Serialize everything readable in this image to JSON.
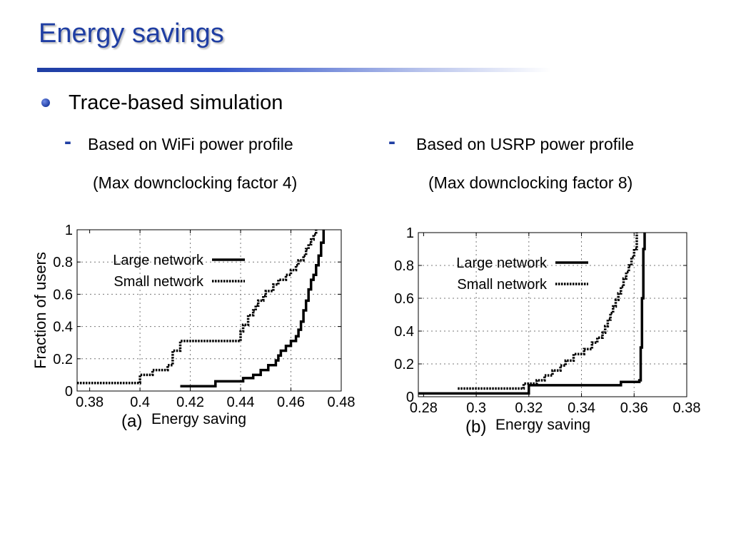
{
  "slide": {
    "title": "Energy savings",
    "bullet": "Trace-based simulation",
    "left_sub": "Based on WiFi power profile",
    "left_note": "(Max downclocking factor 4)",
    "right_sub": "Based on USRP power profile",
    "right_note": "(Max downclocking factor 8)",
    "colors": {
      "title": "#1f3ea3",
      "bullet": "#1f3ea3"
    }
  },
  "chart_data": [
    {
      "type": "line",
      "panel_label": "(a)",
      "xlabel": "Energy saving",
      "ylabel": "Fraction of users",
      "xlim": [
        0.375,
        0.48
      ],
      "ylim": [
        0,
        1
      ],
      "xticks": [
        "0.38",
        "0.4",
        "0.42",
        "0.44",
        "0.46",
        "0.48"
      ],
      "yticks": [
        "0",
        "0.2",
        "0.4",
        "0.6",
        "0.8",
        "1"
      ],
      "grid": true,
      "legend_position": "top-left",
      "step": true,
      "series": [
        {
          "name": "Large network",
          "style": "solid",
          "x": [
            0.416,
            0.43,
            0.441,
            0.445,
            0.448,
            0.451,
            0.454,
            0.455,
            0.456,
            0.458,
            0.46,
            0.462,
            0.463,
            0.464,
            0.465,
            0.466,
            0.467,
            0.468,
            0.469,
            0.47,
            0.471,
            0.472,
            0.473
          ],
          "y": [
            0.03,
            0.06,
            0.08,
            0.1,
            0.13,
            0.16,
            0.19,
            0.22,
            0.25,
            0.28,
            0.31,
            0.34,
            0.38,
            0.43,
            0.5,
            0.56,
            0.63,
            0.69,
            0.72,
            0.78,
            0.84,
            0.92,
            1.0
          ]
        },
        {
          "name": "Small network",
          "style": "dotted",
          "x": [
            0.375,
            0.4,
            0.405,
            0.411,
            0.413,
            0.416,
            0.44,
            0.441,
            0.443,
            0.445,
            0.446,
            0.447,
            0.449,
            0.45,
            0.453,
            0.455,
            0.458,
            0.46,
            0.462,
            0.463,
            0.465,
            0.466,
            0.467,
            0.468,
            0.469,
            0.47
          ],
          "y": [
            0.05,
            0.1,
            0.13,
            0.16,
            0.25,
            0.31,
            0.37,
            0.41,
            0.47,
            0.5,
            0.53,
            0.56,
            0.59,
            0.62,
            0.66,
            0.69,
            0.72,
            0.75,
            0.78,
            0.81,
            0.84,
            0.88,
            0.91,
            0.94,
            0.97,
            1.0
          ]
        }
      ]
    },
    {
      "type": "line",
      "panel_label": "(b)",
      "xlabel": "Energy saving",
      "ylabel": "",
      "xlim": [
        0.278,
        0.38
      ],
      "ylim": [
        0,
        1
      ],
      "xticks": [
        "0.28",
        "0.3",
        "0.32",
        "0.34",
        "0.36",
        "0.38"
      ],
      "yticks": [
        "0",
        "0.2",
        "0.4",
        "0.6",
        "0.8",
        "1"
      ],
      "grid": true,
      "legend_position": "top-left",
      "step": true,
      "series": [
        {
          "name": "Large network",
          "style": "solid",
          "x": [
            0.278,
            0.32,
            0.355,
            0.362,
            0.3625,
            0.363,
            0.3635,
            0.364
          ],
          "y": [
            0.02,
            0.07,
            0.09,
            0.1,
            0.3,
            0.6,
            0.9,
            1.0
          ]
        },
        {
          "name": "Small network",
          "style": "dotted",
          "x": [
            0.293,
            0.318,
            0.323,
            0.326,
            0.329,
            0.332,
            0.334,
            0.337,
            0.341,
            0.344,
            0.346,
            0.348,
            0.349,
            0.35,
            0.351,
            0.352,
            0.353,
            0.354,
            0.355,
            0.356,
            0.357,
            0.358,
            0.359,
            0.36,
            0.361
          ],
          "y": [
            0.05,
            0.08,
            0.1,
            0.13,
            0.16,
            0.19,
            0.22,
            0.26,
            0.29,
            0.33,
            0.36,
            0.39,
            0.43,
            0.47,
            0.51,
            0.55,
            0.59,
            0.63,
            0.67,
            0.72,
            0.76,
            0.8,
            0.85,
            0.9,
            1.0
          ]
        }
      ]
    }
  ]
}
